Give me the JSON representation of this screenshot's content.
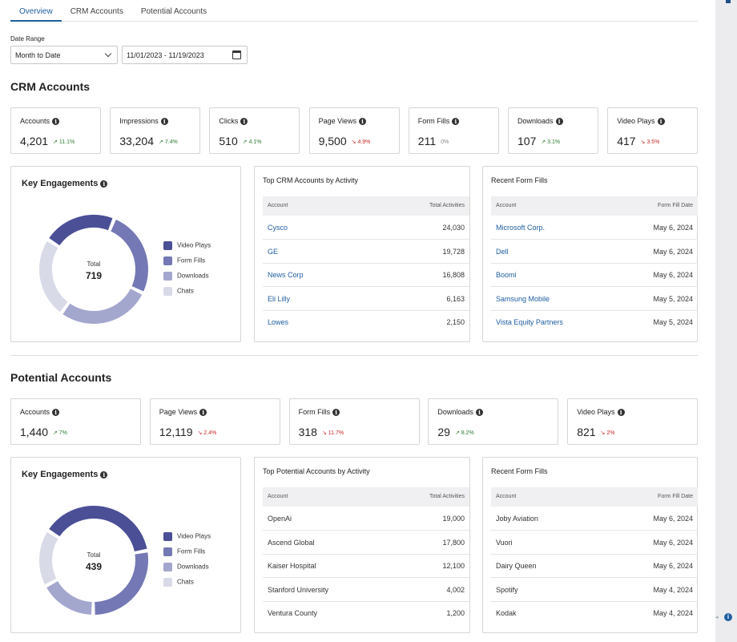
{
  "tabs": [
    {
      "label": "Overview",
      "active": true
    },
    {
      "label": "CRM Accounts",
      "active": false
    },
    {
      "label": "Potential Accounts",
      "active": false
    }
  ],
  "filters": {
    "date_range_label": "Date Range",
    "range_select": "Month to Date",
    "date_value": "11/01/2023 - 11/19/2023"
  },
  "crm": {
    "heading": "CRM Accounts",
    "kpis": [
      {
        "name": "Accounts",
        "value": "4,201",
        "delta": "11.1%",
        "trend": "up"
      },
      {
        "name": "Impressions",
        "value": "33,204",
        "delta": "7.4%",
        "trend": "up"
      },
      {
        "name": "Clicks",
        "value": "510",
        "delta": "4.1%",
        "trend": "up"
      },
      {
        "name": "Page Views",
        "value": "9,500",
        "delta": "4.9%",
        "trend": "down"
      },
      {
        "name": "Form Fills",
        "value": "211",
        "delta": "0%",
        "trend": "flat"
      },
      {
        "name": "Downloads",
        "value": "107",
        "delta": "3.1%",
        "trend": "up"
      },
      {
        "name": "Video Plays",
        "value": "417",
        "delta": "3.5%",
        "trend": "down"
      }
    ],
    "engagements": {
      "title": "Key Engagements",
      "total_label": "Total",
      "total": "719",
      "segments": [
        {
          "label": "Video Plays",
          "fraction": 0.22,
          "color": "#4b4f96"
        },
        {
          "label": "Form Fills",
          "fraction": 0.26,
          "color": "#7478b4"
        },
        {
          "label": "Downloads",
          "fraction": 0.28,
          "color": "#a3a6cd"
        },
        {
          "label": "Chats",
          "fraction": 0.24,
          "color": "#d9dae8"
        }
      ]
    },
    "top_accounts": {
      "title": "Top CRM Accounts by Activity",
      "col_left": "Account",
      "col_right": "Total Activities",
      "rows": [
        {
          "name": "Cysco",
          "value": "24,030"
        },
        {
          "name": "GE",
          "value": "19,728"
        },
        {
          "name": "News Corp",
          "value": "16,808"
        },
        {
          "name": "Eli Lilly",
          "value": "6,163"
        },
        {
          "name": "Lowes",
          "value": "2,150"
        }
      ]
    },
    "recent_fills": {
      "title": "Recent Form Fills",
      "col_left": "Account",
      "col_right": "Form Fill Date",
      "rows": [
        {
          "name": "Microsoft Corp.",
          "value": "May 6, 2024"
        },
        {
          "name": "Dell",
          "value": "May 6, 2024"
        },
        {
          "name": "Boomi",
          "value": "May 6, 2024"
        },
        {
          "name": "Samsung Mobile",
          "value": "May 5, 2024"
        },
        {
          "name": "Vista Equity Partners",
          "value": "May 5, 2024"
        }
      ]
    }
  },
  "potential": {
    "heading": "Potential Accounts",
    "kpis": [
      {
        "name": "Accounts",
        "value": "1,440",
        "delta": "7%",
        "trend": "up"
      },
      {
        "name": "Page Views",
        "value": "12,119",
        "delta": "2.4%",
        "trend": "down"
      },
      {
        "name": "Form Fills",
        "value": "318",
        "delta": "11.7%",
        "trend": "down"
      },
      {
        "name": "Downloads",
        "value": "29",
        "delta": "8.2%",
        "trend": "up"
      },
      {
        "name": "Video Plays",
        "value": "821",
        "delta": "2%",
        "trend": "down"
      }
    ],
    "engagements": {
      "title": "Key Engagements",
      "total_label": "Total",
      "total": "439",
      "segments": [
        {
          "label": "Video Plays",
          "fraction": 0.38,
          "color": "#4b4f96"
        },
        {
          "label": "Form Fills",
          "fraction": 0.28,
          "color": "#7478b4"
        },
        {
          "label": "Downloads",
          "fraction": 0.17,
          "color": "#a3a6cd"
        },
        {
          "label": "Chats",
          "fraction": 0.17,
          "color": "#d9dae8"
        }
      ]
    },
    "top_accounts": {
      "title": "Top Potential Accounts by Activity",
      "col_left": "Account",
      "col_right": "Total Activities",
      "rows": [
        {
          "name": "OpenAi",
          "value": "19,000"
        },
        {
          "name": "Ascend Global",
          "value": "17,800"
        },
        {
          "name": "Kaiser Hospital",
          "value": "12,100"
        },
        {
          "name": "Stanford University",
          "value": "4,002"
        },
        {
          "name": "Ventura County",
          "value": "1,200"
        }
      ]
    },
    "recent_fills": {
      "title": "Recent Form Fills",
      "col_left": "Account",
      "col_right": "Form Fill Date",
      "rows": [
        {
          "name": "Joby Aviation",
          "value": "May 6, 2024"
        },
        {
          "name": "Vuori",
          "value": "May 6, 2024"
        },
        {
          "name": "Dairy Queen",
          "value": "May 6, 2024"
        },
        {
          "name": "Spotify",
          "value": "May 4, 2024"
        },
        {
          "name": "Kodak",
          "value": "May 4, 2024"
        }
      ]
    }
  }
}
